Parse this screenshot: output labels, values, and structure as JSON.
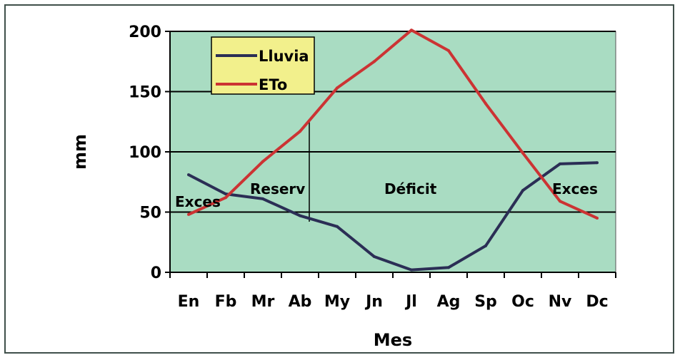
{
  "chart_data": {
    "type": "line",
    "categories": [
      "En",
      "Fb",
      "Mr",
      "Ab",
      "My",
      "Jn",
      "Jl",
      "Ag",
      "Sp",
      "Oc",
      "Nv",
      "Dc"
    ],
    "series": [
      {
        "name": "Lluvia",
        "color": "#2b2e55",
        "values": [
          81,
          65,
          61,
          47,
          38,
          13,
          2,
          4,
          22,
          68,
          90,
          91
        ]
      },
      {
        "name": "ETo",
        "color": "#cc3333",
        "values": [
          48,
          62,
          92,
          117,
          153,
          175,
          201,
          184,
          140,
          99,
          59,
          45
        ]
      }
    ],
    "title": "",
    "xlabel": "Mes",
    "ylabel": "mm",
    "ylim": [
      0,
      200
    ],
    "yticks": [
      0,
      50,
      100,
      150,
      200
    ],
    "grid": true,
    "plot_background": "#a9dcc2",
    "legend_background": "#f2f08c",
    "legend_position": "top-left",
    "region_labels": [
      "Exces",
      "Reserv",
      "Déficit",
      "Exces"
    ],
    "divider_month": "Ab"
  }
}
